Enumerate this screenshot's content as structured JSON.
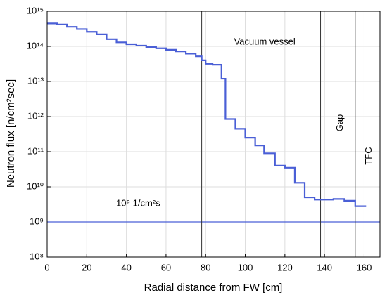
{
  "chart_data": {
    "type": "step",
    "xlabel": "Radial distance from FW [cm]",
    "ylabel": "Neutron flux [n/cm²sec]",
    "log_y": true,
    "grid": true,
    "xlim": [
      0,
      168
    ],
    "xticks": [
      0,
      20,
      40,
      60,
      80,
      100,
      120,
      140,
      160
    ],
    "ylim": [
      100000000.0,
      1000000000000000.0
    ],
    "yticks": [
      {
        "value": 100000000.0,
        "label": "10⁸"
      },
      {
        "value": 1000000000.0,
        "label": "10⁹"
      },
      {
        "value": 10000000000.0,
        "label": "10¹⁰"
      },
      {
        "value": 100000000000.0,
        "label": "10¹¹"
      },
      {
        "value": 1000000000000.0,
        "label": "10¹²"
      },
      {
        "value": 10000000000000.0,
        "label": "10¹³"
      },
      {
        "value": 100000000000000.0,
        "label": "10¹⁴"
      },
      {
        "value": 1000000000000000.0,
        "label": "10¹⁵"
      }
    ],
    "series": [
      {
        "color": "#4a5fd6",
        "x": [
          0,
          5,
          10,
          15,
          20,
          25,
          30,
          35,
          40,
          45,
          50,
          55,
          60,
          65,
          70,
          75,
          78,
          80,
          83.5,
          88,
          90,
          95,
          100,
          105,
          109.5,
          115,
          120,
          125,
          130,
          135,
          144.5,
          150,
          155.5,
          161
        ],
        "values": [
          450000000000000.0,
          420000000000000.0,
          360000000000000.0,
          310000000000000.0,
          260000000000000.0,
          220000000000000.0,
          160000000000000.0,
          130000000000000.0,
          115000000000000.0,
          105000000000000.0,
          95000000000000.0,
          88000000000000.0,
          80000000000000.0,
          72000000000000.0,
          62000000000000.0,
          52000000000000.0,
          40000000000000.0,
          32000000000000.0,
          30000000000000.0,
          12000000000000.0,
          850000000000.0,
          450000000000.0,
          250000000000.0,
          150000000000.0,
          90000000000.0,
          40000000000.0,
          35000000000.0,
          13000000000.0,
          5000000000.0,
          4300000000.0,
          4500000000.0,
          4000000000.0,
          2800000000.0,
          2800000000.0
        ]
      }
    ],
    "reference_line": {
      "value": 1000000000.0,
      "label": "10⁹ 1/cm²s",
      "color": "#4a5fd6"
    },
    "boundaries": [
      {
        "x": 78,
        "label": "Vacuum vessel"
      },
      {
        "x": 138,
        "label": "Gap"
      },
      {
        "x": 155.5,
        "label": "TFC"
      }
    ]
  }
}
